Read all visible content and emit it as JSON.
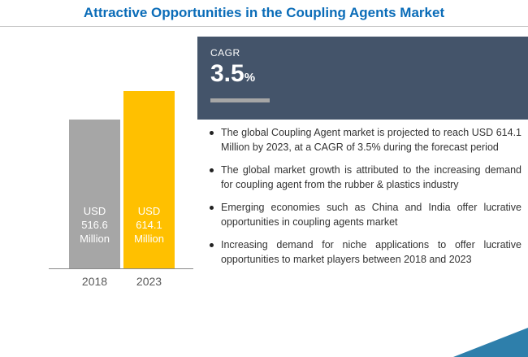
{
  "title": "Attractive Opportunities in the Coupling Agents Market",
  "cagr": {
    "label": "CAGR",
    "value": "3.5",
    "percent_sign": "%"
  },
  "chart_data": {
    "type": "bar",
    "title": "Attractive Opportunities in the Coupling Agents Market",
    "categories": [
      "2018",
      "2023"
    ],
    "values": [
      516.6,
      614.1
    ],
    "bar_labels": [
      "USD 516.6 Million",
      "USD 614.1 Million"
    ],
    "bar_colors": [
      "#a6a6a6",
      "#ffc000"
    ],
    "xlabel": "",
    "ylabel": "",
    "legend": "none",
    "grid": "off"
  },
  "bullets": [
    "The global Coupling Agent market is projected to reach USD 614.1 Million by 2023, at a CAGR of 3.5% during the forecast period",
    "The global market growth is attributed to the increasing demand for coupling agent from the rubber & plastics industry",
    "Emerging economies such as China and India offer lucrative opportunities in coupling agents market",
    "Increasing demand for niche applications to offer lucrative opportunities to market players between 2018 and 2023"
  ],
  "colors": {
    "title_text": "#0a6cb8",
    "cagr_panel": "#44546a",
    "bar_2018": "#a6a6a6",
    "bar_2023": "#ffc000",
    "corner_accent": "#2e7fab"
  }
}
